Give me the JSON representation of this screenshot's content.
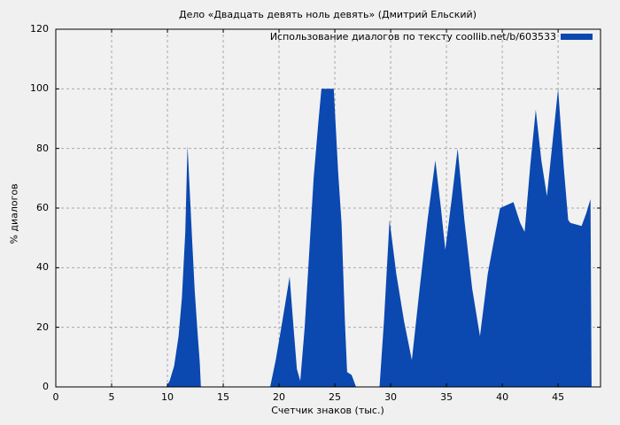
{
  "title": "Дело «Двадцать девять ноль девять» (Дмитрий Ельский)",
  "legend": {
    "label": "Использование диалогов по тексту coollib.net/b/603533",
    "swatch_color": "#0b48b0"
  },
  "colors": {
    "page_background": "#f0f0f0",
    "plot_background": "#f1f1f1",
    "series_fill": "#0b48b0",
    "grid": "#a8a8a8",
    "frame": "#000000"
  },
  "chart_data": {
    "type": "area",
    "title": "Дело «Двадцать девять ноль девять» (Дмитрий Ельский)",
    "xlabel": "Счетчик знаков (тыс.)",
    "ylabel": "% диалогов",
    "xlim": [
      0,
      48.8
    ],
    "ylim": [
      0,
      120
    ],
    "x_ticks": [
      0,
      5,
      10,
      15,
      20,
      25,
      30,
      35,
      40,
      45
    ],
    "y_ticks": [
      0,
      20,
      40,
      60,
      80,
      100,
      120
    ],
    "grid": true,
    "legend_position": "top-right",
    "series": [
      {
        "name": "Использование диалогов по тексту coollib.net/b/603533",
        "points": [
          [
            0,
            0
          ],
          [
            9.9,
            0
          ],
          [
            10.2,
            2
          ],
          [
            10.6,
            7
          ],
          [
            11.0,
            17
          ],
          [
            11.3,
            30
          ],
          [
            11.6,
            52
          ],
          [
            11.8,
            81
          ],
          [
            12.0,
            66
          ],
          [
            12.2,
            50
          ],
          [
            12.45,
            32
          ],
          [
            12.7,
            18
          ],
          [
            12.9,
            8
          ],
          [
            13.0,
            0
          ],
          [
            19.2,
            0
          ],
          [
            19.7,
            9
          ],
          [
            20.2,
            20
          ],
          [
            20.6,
            29
          ],
          [
            20.95,
            37
          ],
          [
            21.3,
            20
          ],
          [
            21.6,
            6
          ],
          [
            21.9,
            2
          ],
          [
            22.3,
            20
          ],
          [
            22.7,
            45
          ],
          [
            23.1,
            70
          ],
          [
            23.5,
            88
          ],
          [
            23.8,
            100
          ],
          [
            24.9,
            100
          ],
          [
            25.3,
            72
          ],
          [
            25.6,
            55
          ],
          [
            25.9,
            22
          ],
          [
            26.1,
            5
          ],
          [
            26.5,
            4
          ],
          [
            26.9,
            0
          ],
          [
            29.0,
            0
          ],
          [
            29.4,
            22
          ],
          [
            29.9,
            56
          ],
          [
            30.5,
            38
          ],
          [
            31.2,
            22
          ],
          [
            31.9,
            9
          ],
          [
            32.6,
            33
          ],
          [
            33.3,
            56
          ],
          [
            34.0,
            76
          ],
          [
            34.5,
            60
          ],
          [
            34.9,
            46
          ],
          [
            35.5,
            64
          ],
          [
            36.0,
            80
          ],
          [
            36.6,
            56
          ],
          [
            37.3,
            33
          ],
          [
            38.0,
            17
          ],
          [
            38.7,
            38
          ],
          [
            39.4,
            52
          ],
          [
            39.8,
            60
          ],
          [
            41.0,
            62
          ],
          [
            41.6,
            55
          ],
          [
            42.0,
            52
          ],
          [
            42.5,
            74
          ],
          [
            43.0,
            93
          ],
          [
            43.5,
            76
          ],
          [
            44.0,
            64
          ],
          [
            44.5,
            82
          ],
          [
            45.0,
            100
          ],
          [
            45.5,
            74
          ],
          [
            45.9,
            56
          ],
          [
            46.1,
            55
          ],
          [
            47.1,
            54
          ],
          [
            47.5,
            58
          ],
          [
            47.9,
            63
          ],
          [
            48.0,
            0
          ]
        ]
      }
    ]
  }
}
